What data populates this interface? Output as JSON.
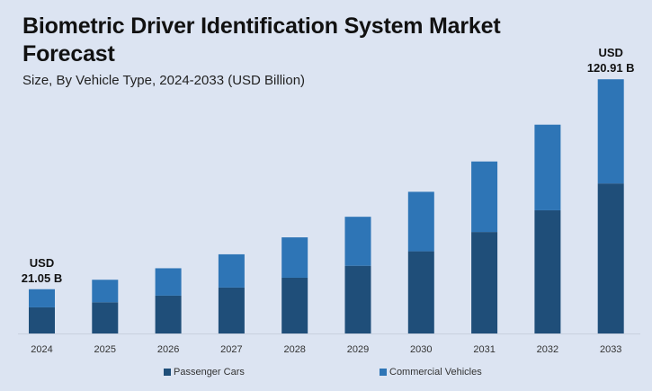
{
  "chart_data": {
    "type": "bar",
    "stacked": true,
    "title": "Biometric Driver Identification System Market Forecast",
    "subtitle": "Size, By Vehicle Type, 2024-2033 (USD Billion)",
    "xlabel": "",
    "ylabel": "",
    "categories": [
      "2024",
      "2025",
      "2026",
      "2027",
      "2028",
      "2029",
      "2030",
      "2031",
      "2032",
      "2033"
    ],
    "series": [
      {
        "name": "Passenger Cars",
        "color": "#1f4e79",
        "values": [
          12.42,
          14.82,
          17.99,
          21.84,
          26.52,
          32.2,
          39.09,
          48.27,
          58.6,
          71.34
        ]
      },
      {
        "name": "Commercial Vehicles",
        "color": "#2e75b6",
        "values": [
          8.63,
          10.73,
          13.03,
          15.82,
          19.2,
          23.31,
          28.3,
          33.54,
          40.72,
          49.57
        ]
      }
    ],
    "totals": [
      21.05,
      25.55,
      31.02,
      37.66,
      45.72,
      55.51,
      67.39,
      81.81,
      99.32,
      120.91
    ],
    "annotations": [
      {
        "category": "2024",
        "line1": "USD",
        "line2": "21.05 B"
      },
      {
        "category": "2033",
        "line1": "USD",
        "line2": "120.91 B"
      }
    ],
    "ylim": [
      0,
      121
    ],
    "grid": false,
    "legend_position": "bottom"
  }
}
